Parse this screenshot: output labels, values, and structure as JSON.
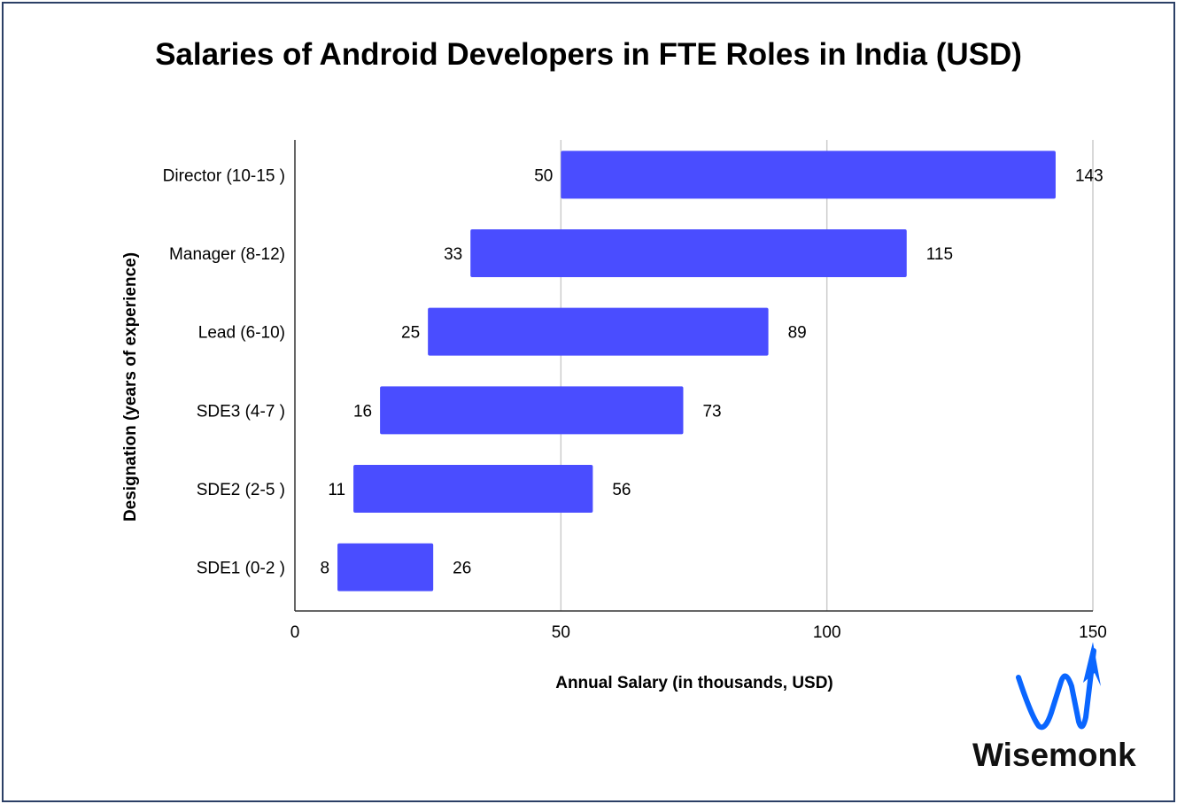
{
  "chart_data": {
    "type": "bar",
    "orientation": "horizontal",
    "style": "floating-range",
    "title": "Salaries of Android Developers in FTE Roles in India (USD)",
    "xlabel": "Annual Salary (in thousands, USD)",
    "ylabel": "Designation (years of experience)",
    "categories": [
      "Director (10-15 )",
      "Manager (8-12)",
      "Lead (6-10)",
      "SDE3 (4-7 )",
      "SDE2 (2-5 )",
      "SDE1 (0-2 )"
    ],
    "min_values": [
      50,
      33,
      25,
      16,
      11,
      8
    ],
    "max_values": [
      143,
      115,
      89,
      73,
      56,
      26
    ],
    "xlim": [
      0,
      150
    ],
    "xticks": [
      "0",
      "50",
      "100",
      "150"
    ],
    "grid": "vertical",
    "bar_color": "#4a4dff"
  },
  "logo": {
    "text": "Wisemonk",
    "color": "#0a66ff"
  }
}
